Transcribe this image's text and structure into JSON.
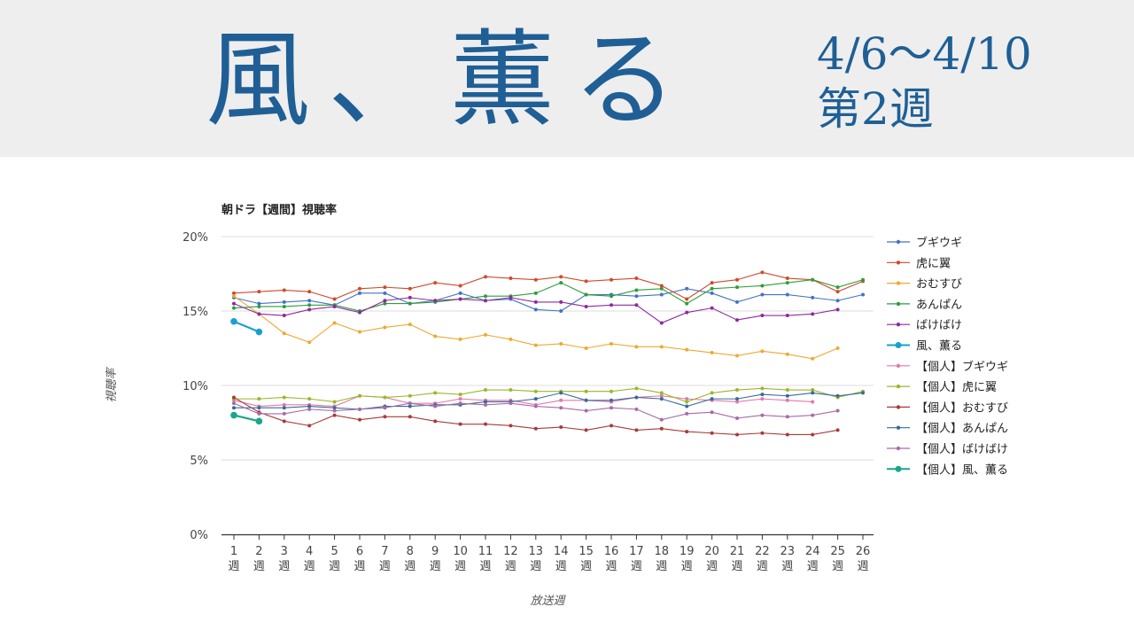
{
  "header": {
    "title": "風、薫る",
    "date_range": "4/6～4/10",
    "week": "第2週"
  },
  "chart_data": {
    "type": "line",
    "title": "朝ドラ【週間】視聴率",
    "xlabel": "放送週",
    "ylabel": "視聴率",
    "ylim": [
      0,
      20
    ],
    "yticks": [
      "0%",
      "5%",
      "10%",
      "15%",
      "20%"
    ],
    "ytick_values": [
      0,
      5,
      10,
      15,
      20
    ],
    "week_suffix": "週",
    "categories": [
      "1",
      "2",
      "3",
      "4",
      "5",
      "6",
      "7",
      "8",
      "9",
      "10",
      "11",
      "12",
      "13",
      "14",
      "15",
      "16",
      "17",
      "18",
      "19",
      "20",
      "21",
      "22",
      "23",
      "24",
      "25",
      "26"
    ],
    "grid": true,
    "legend_position": "right",
    "series": [
      {
        "name": "ブギウギ",
        "color": "#4472c4",
        "values": [
          15.9,
          15.5,
          15.6,
          15.7,
          15.4,
          16.2,
          16.2,
          15.5,
          15.7,
          16.2,
          15.7,
          15.8,
          15.1,
          15.0,
          16.1,
          16.1,
          16.0,
          16.1,
          16.5,
          16.2,
          15.6,
          16.1,
          16.1,
          15.9,
          15.7,
          16.1
        ]
      },
      {
        "name": "虎に翼",
        "color": "#d04a2a",
        "values": [
          16.2,
          16.3,
          16.4,
          16.3,
          15.8,
          16.5,
          16.6,
          16.5,
          16.9,
          16.7,
          17.3,
          17.2,
          17.1,
          17.3,
          17.0,
          17.1,
          17.2,
          16.7,
          15.8,
          16.9,
          17.1,
          17.6,
          17.2,
          17.1,
          16.3,
          17.0
        ]
      },
      {
        "name": "おむすび",
        "color": "#f0a830",
        "values": [
          16.0,
          14.8,
          13.5,
          12.9,
          14.2,
          13.6,
          13.9,
          14.1,
          13.3,
          13.1,
          13.4,
          13.1,
          12.7,
          12.8,
          12.5,
          12.8,
          12.6,
          12.6,
          12.4,
          12.2,
          12.0,
          12.3,
          12.1,
          11.8,
          12.5,
          null
        ]
      },
      {
        "name": "あんぱん",
        "color": "#2e9e3a",
        "values": [
          15.2,
          15.3,
          15.3,
          15.4,
          15.4,
          15.0,
          15.5,
          15.5,
          15.6,
          15.8,
          16.0,
          16.0,
          16.2,
          16.9,
          16.1,
          16.0,
          16.4,
          16.5,
          15.5,
          16.5,
          16.6,
          16.7,
          16.9,
          17.1,
          16.6,
          17.1
        ]
      },
      {
        "name": "ばけばけ",
        "color": "#8e2a9e",
        "values": [
          15.5,
          14.8,
          14.7,
          15.1,
          15.3,
          14.9,
          15.7,
          15.9,
          15.7,
          15.8,
          15.7,
          15.9,
          15.6,
          15.6,
          15.3,
          15.4,
          15.4,
          14.2,
          14.9,
          15.2,
          14.4,
          14.7,
          14.7,
          14.8,
          15.1,
          null
        ]
      },
      {
        "name": "風、薫る",
        "color": "#1aa0d0",
        "emphasis": true,
        "values": [
          14.3,
          13.6,
          null,
          null,
          null,
          null,
          null,
          null,
          null,
          null,
          null,
          null,
          null,
          null,
          null,
          null,
          null,
          null,
          null,
          null,
          null,
          null,
          null,
          null,
          null,
          null
        ]
      },
      {
        "name": "【個人】ブギウギ",
        "color": "#e07aa8",
        "values": [
          9.0,
          8.6,
          8.7,
          8.7,
          8.6,
          9.3,
          9.2,
          8.8,
          8.8,
          9.1,
          9.0,
          9.0,
          8.7,
          9.0,
          9.0,
          8.9,
          9.2,
          9.3,
          9.1,
          9.0,
          8.9,
          9.1,
          9.0,
          8.9,
          null,
          null
        ]
      },
      {
        "name": "【個人】虎に翼",
        "color": "#9ab82a",
        "values": [
          9.1,
          9.1,
          9.2,
          9.1,
          8.9,
          9.3,
          9.2,
          9.3,
          9.5,
          9.4,
          9.7,
          9.7,
          9.6,
          9.6,
          9.6,
          9.6,
          9.8,
          9.5,
          8.9,
          9.5,
          9.7,
          9.8,
          9.7,
          9.7,
          9.2,
          9.6
        ]
      },
      {
        "name": "【個人】おむすび",
        "color": "#a83a3a",
        "values": [
          9.2,
          8.2,
          7.6,
          7.3,
          8.0,
          7.7,
          7.9,
          7.9,
          7.6,
          7.4,
          7.4,
          7.3,
          7.1,
          7.2,
          7.0,
          7.3,
          7.0,
          7.1,
          6.9,
          6.8,
          6.7,
          6.8,
          6.7,
          6.7,
          7.0,
          null
        ]
      },
      {
        "name": "【個人】あんぱん",
        "color": "#3a6a9a",
        "values": [
          8.5,
          8.5,
          8.5,
          8.6,
          8.5,
          8.4,
          8.6,
          8.6,
          8.7,
          8.7,
          8.9,
          8.9,
          9.1,
          9.5,
          9.0,
          9.0,
          9.2,
          9.1,
          8.6,
          9.1,
          9.1,
          9.4,
          9.3,
          9.5,
          9.3,
          9.5
        ]
      },
      {
        "name": "【個人】ばけばけ",
        "color": "#a86aa8",
        "values": [
          8.8,
          8.1,
          8.1,
          8.4,
          8.3,
          8.4,
          8.5,
          8.8,
          8.6,
          8.8,
          8.7,
          8.8,
          8.6,
          8.5,
          8.3,
          8.5,
          8.4,
          7.7,
          8.1,
          8.2,
          7.8,
          8.0,
          7.9,
          8.0,
          8.3,
          null
        ]
      },
      {
        "name": "【個人】風、薫る",
        "color": "#1aa68a",
        "emphasis": true,
        "values": [
          8.0,
          7.6,
          null,
          null,
          null,
          null,
          null,
          null,
          null,
          null,
          null,
          null,
          null,
          null,
          null,
          null,
          null,
          null,
          null,
          null,
          null,
          null,
          null,
          null,
          null,
          null
        ]
      }
    ]
  }
}
